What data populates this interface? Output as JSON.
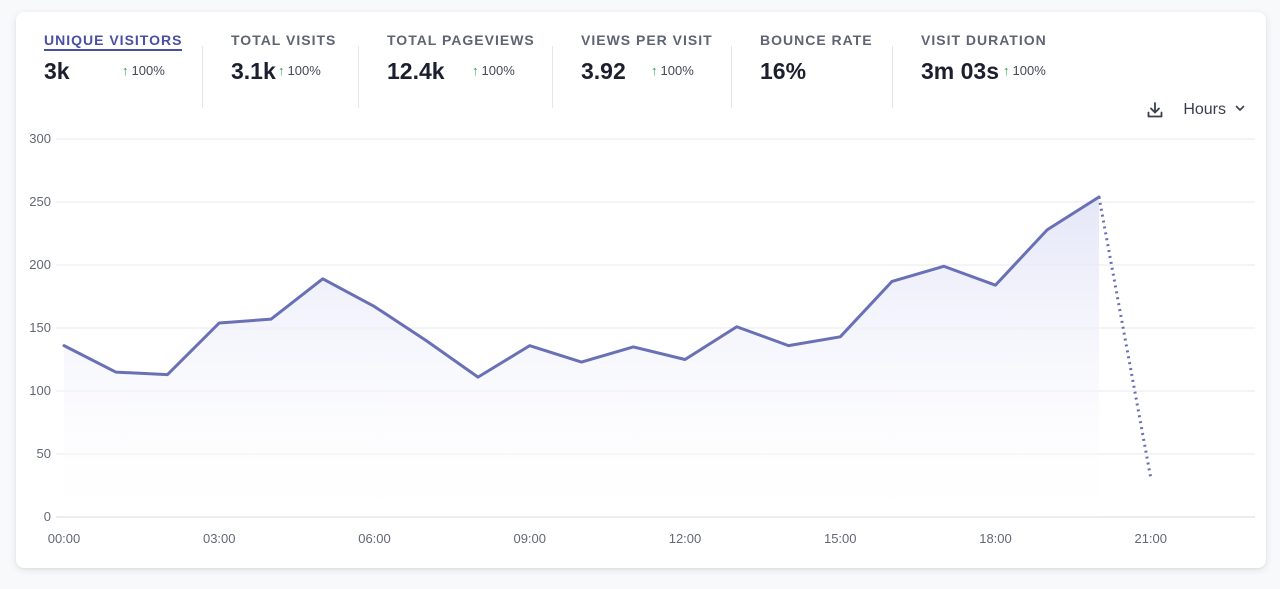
{
  "metrics": [
    {
      "label": "UNIQUE VISITORS",
      "value": "3k",
      "change": "100%",
      "active": true
    },
    {
      "label": "TOTAL VISITS",
      "value": "3.1k",
      "change": "100%"
    },
    {
      "label": "TOTAL PAGEVIEWS",
      "value": "12.4k",
      "change": "100%"
    },
    {
      "label": "VIEWS PER VISIT",
      "value": "3.92",
      "change": "100%"
    },
    {
      "label": "BOUNCE RATE",
      "value": "16%",
      "change": ""
    },
    {
      "label": "VISIT DURATION",
      "value": "3m 03s",
      "change": "100%"
    }
  ],
  "controls": {
    "download_icon": "download-icon",
    "interval_label": "Hours",
    "interval_icon": "chevron-down-icon"
  },
  "colors": {
    "line": "#6970b5",
    "fill_top": "#e3e5f7",
    "grid": "#e8e9ee",
    "active_label": "#4a4fa6",
    "change_up": "#2f9e59"
  },
  "chart_data": {
    "type": "line",
    "x": [
      0,
      1,
      2,
      3,
      4,
      5,
      6,
      7,
      8,
      9,
      10,
      11,
      12,
      13,
      14,
      15,
      16,
      17,
      18,
      19,
      20,
      21
    ],
    "values": [
      136,
      115,
      113,
      154,
      157,
      189,
      167,
      140,
      111,
      136,
      123,
      135,
      125,
      151,
      136,
      143,
      187,
      199,
      184,
      228,
      254,
      31
    ],
    "dotted_from_index": 20,
    "x_ticks": [
      "00:00",
      "03:00",
      "06:00",
      "09:00",
      "12:00",
      "15:00",
      "18:00",
      "21:00"
    ],
    "x_tick_hours": [
      0,
      3,
      6,
      9,
      12,
      15,
      18,
      21
    ],
    "y_ticks": [
      0,
      50,
      100,
      150,
      200,
      250,
      300
    ],
    "ylim": [
      0,
      300
    ],
    "xlabel": "",
    "ylabel": "",
    "title": "",
    "grid": true
  }
}
